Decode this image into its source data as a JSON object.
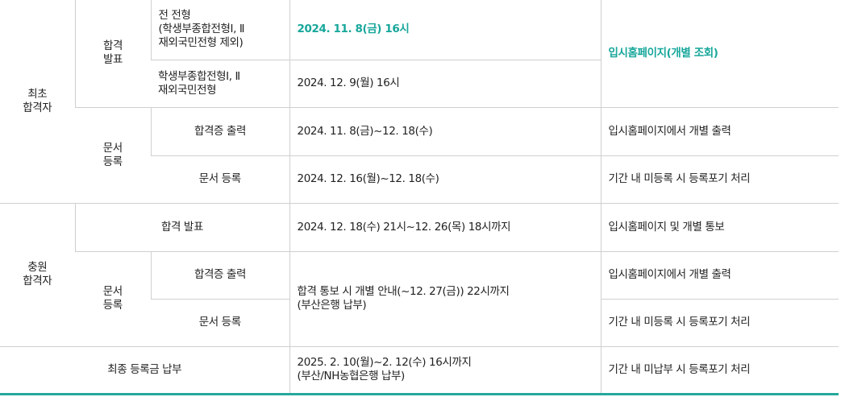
{
  "initial": {
    "label": "최초\n합격자",
    "announce": {
      "label": "합격\n발표",
      "all": {
        "name": "전 전형\n(학생부종합전형Ⅰ, Ⅱ\n재외국민전형 제외)",
        "date": "2024. 11. 8(금) 16시"
      },
      "exception": {
        "name": "학생부종합전형Ⅰ, Ⅱ\n재외국민전형",
        "date": "2024. 12. 9(월) 16시"
      },
      "note": "입시홈페이지(개별 조회)"
    },
    "documents": {
      "label": "문서\n등록",
      "certificate": {
        "name": "합격증 출력",
        "date": "2024. 11. 8(금)~12. 18(수)",
        "note": "입시홈페이지에서 개별 출력"
      },
      "registration": {
        "name": "문서 등록",
        "date": "2024. 12. 16(월)~12. 18(수)",
        "note": "기간 내 미등록 시 등록포기 처리"
      }
    }
  },
  "additional": {
    "label": "충원\n합격자",
    "announce": {
      "name": "합격 발표",
      "date": "2024. 12. 18(수) 21시~12. 26(목) 18시까지",
      "note": "입시홈페이지 및 개별 통보"
    },
    "documents": {
      "label": "문서\n등록",
      "certificate": {
        "name": "합격증 출력",
        "note": "입시홈페이지에서 개별 출력"
      },
      "registration": {
        "name": "문서 등록",
        "note": "기간 내 미등록 시 등록포기 처리"
      },
      "date": "합격 통보 시 개별 안내(~12. 27(금)) 22시까지\n(부산은행 납부)"
    }
  },
  "final": {
    "name": "최종 등록금 납부",
    "date": "2025. 2. 10(월)~2. 12(수) 16시까지\n(부산/NH농협은행 납부)",
    "note": "기간 내 미납부 시 등록포기 처리"
  },
  "colors": {
    "accent": "#18a79b",
    "border": "#cfcfcf",
    "bottom_rule": "#24a89c"
  }
}
